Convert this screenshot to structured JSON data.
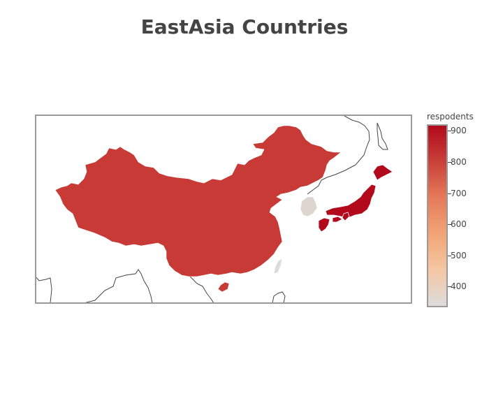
{
  "title": "EastAsia Countries",
  "colorbar": {
    "title": "respodents",
    "ticks": [
      "400",
      "500",
      "600",
      "700",
      "800",
      "900"
    ],
    "colorscale": [
      "#dcdcdc",
      "#f5c7a3",
      "#f2a475",
      "#e57b5a",
      "#c9413a",
      "#b20a1c"
    ]
  },
  "map": {
    "type": "choropleth",
    "projection": "mercator",
    "region": "East Asia",
    "countries": [
      {
        "name": "China",
        "level": "high",
        "color": "#c83a35"
      },
      {
        "name": "Japan",
        "level": "highest",
        "color": "#b20a1c"
      },
      {
        "name": "South Korea",
        "level": "lowest",
        "color": "#ddd5d0"
      },
      {
        "name": "Taiwan",
        "level": "lowest",
        "color": "#dcdcdc"
      }
    ]
  }
}
